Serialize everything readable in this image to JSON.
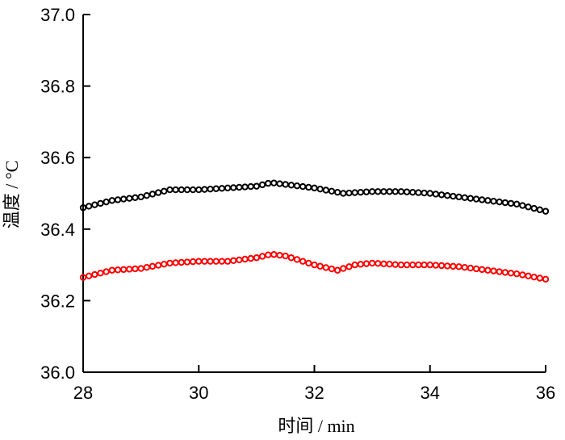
{
  "chart_data": {
    "type": "scatter",
    "title": "",
    "xlabel": "时间 / min",
    "ylabel": "温度 / °C",
    "xlim": [
      28,
      36
    ],
    "ylim": [
      36.0,
      37.0
    ],
    "x_ticks": [
      28,
      30,
      32,
      34,
      36
    ],
    "y_ticks": [
      36.0,
      36.2,
      36.4,
      36.6,
      36.8,
      37.0
    ],
    "x_tick_labels": [
      "28",
      "30",
      "32",
      "34",
      "36"
    ],
    "y_tick_labels": [
      "36.0",
      "36.2",
      "36.4",
      "36.6",
      "36.8",
      "37.0"
    ],
    "grid": false,
    "legend": "none",
    "marker": "open-circle",
    "series": [
      {
        "color": "#000000",
        "x": [
          28.0,
          28.5,
          29.0,
          29.5,
          30.0,
          30.5,
          31.0,
          31.25,
          31.5,
          32.0,
          32.5,
          33.0,
          33.5,
          34.0,
          34.5,
          35.0,
          35.5,
          36.0
        ],
        "values": [
          36.46,
          36.48,
          36.49,
          36.51,
          36.51,
          36.515,
          36.52,
          36.53,
          36.525,
          36.515,
          36.5,
          36.505,
          36.505,
          36.5,
          36.49,
          36.48,
          36.47,
          36.45
        ]
      },
      {
        "color": "#ff0000",
        "x": [
          28.0,
          28.5,
          29.0,
          29.5,
          30.0,
          30.5,
          31.0,
          31.25,
          31.5,
          32.0,
          32.4,
          32.7,
          33.0,
          33.5,
          34.0,
          34.5,
          35.0,
          35.5,
          36.0
        ],
        "values": [
          36.265,
          36.285,
          36.29,
          36.305,
          36.31,
          36.31,
          36.32,
          36.33,
          36.325,
          36.3,
          36.285,
          36.3,
          36.305,
          36.3,
          36.3,
          36.295,
          36.285,
          36.275,
          36.26
        ]
      }
    ]
  }
}
